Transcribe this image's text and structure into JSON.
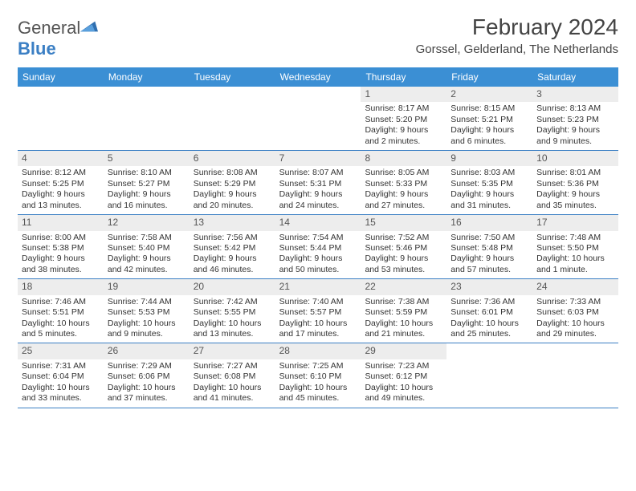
{
  "logo": {
    "text_general": "General",
    "text_blue": "Blue"
  },
  "title": "February 2024",
  "location": "Gorssel, Gelderland, The Netherlands",
  "colors": {
    "header_bar": "#3b8fd4",
    "rule": "#3b7fc4",
    "daynum_bg": "#ededed",
    "text": "#333333",
    "bg": "#ffffff"
  },
  "typography": {
    "title_fontsize": 28,
    "location_fontsize": 15,
    "dow_fontsize": 12,
    "body_fontsize": 10.5
  },
  "days_of_week": [
    "Sunday",
    "Monday",
    "Tuesday",
    "Wednesday",
    "Thursday",
    "Friday",
    "Saturday"
  ],
  "weeks": [
    [
      {
        "empty": true
      },
      {
        "empty": true
      },
      {
        "empty": true
      },
      {
        "empty": true
      },
      {
        "num": "1",
        "sunrise": "Sunrise: 8:17 AM",
        "sunset": "Sunset: 5:20 PM",
        "daylight": "Daylight: 9 hours and 2 minutes."
      },
      {
        "num": "2",
        "sunrise": "Sunrise: 8:15 AM",
        "sunset": "Sunset: 5:21 PM",
        "daylight": "Daylight: 9 hours and 6 minutes."
      },
      {
        "num": "3",
        "sunrise": "Sunrise: 8:13 AM",
        "sunset": "Sunset: 5:23 PM",
        "daylight": "Daylight: 9 hours and 9 minutes."
      }
    ],
    [
      {
        "num": "4",
        "sunrise": "Sunrise: 8:12 AM",
        "sunset": "Sunset: 5:25 PM",
        "daylight": "Daylight: 9 hours and 13 minutes."
      },
      {
        "num": "5",
        "sunrise": "Sunrise: 8:10 AM",
        "sunset": "Sunset: 5:27 PM",
        "daylight": "Daylight: 9 hours and 16 minutes."
      },
      {
        "num": "6",
        "sunrise": "Sunrise: 8:08 AM",
        "sunset": "Sunset: 5:29 PM",
        "daylight": "Daylight: 9 hours and 20 minutes."
      },
      {
        "num": "7",
        "sunrise": "Sunrise: 8:07 AM",
        "sunset": "Sunset: 5:31 PM",
        "daylight": "Daylight: 9 hours and 24 minutes."
      },
      {
        "num": "8",
        "sunrise": "Sunrise: 8:05 AM",
        "sunset": "Sunset: 5:33 PM",
        "daylight": "Daylight: 9 hours and 27 minutes."
      },
      {
        "num": "9",
        "sunrise": "Sunrise: 8:03 AM",
        "sunset": "Sunset: 5:35 PM",
        "daylight": "Daylight: 9 hours and 31 minutes."
      },
      {
        "num": "10",
        "sunrise": "Sunrise: 8:01 AM",
        "sunset": "Sunset: 5:36 PM",
        "daylight": "Daylight: 9 hours and 35 minutes."
      }
    ],
    [
      {
        "num": "11",
        "sunrise": "Sunrise: 8:00 AM",
        "sunset": "Sunset: 5:38 PM",
        "daylight": "Daylight: 9 hours and 38 minutes."
      },
      {
        "num": "12",
        "sunrise": "Sunrise: 7:58 AM",
        "sunset": "Sunset: 5:40 PM",
        "daylight": "Daylight: 9 hours and 42 minutes."
      },
      {
        "num": "13",
        "sunrise": "Sunrise: 7:56 AM",
        "sunset": "Sunset: 5:42 PM",
        "daylight": "Daylight: 9 hours and 46 minutes."
      },
      {
        "num": "14",
        "sunrise": "Sunrise: 7:54 AM",
        "sunset": "Sunset: 5:44 PM",
        "daylight": "Daylight: 9 hours and 50 minutes."
      },
      {
        "num": "15",
        "sunrise": "Sunrise: 7:52 AM",
        "sunset": "Sunset: 5:46 PM",
        "daylight": "Daylight: 9 hours and 53 minutes."
      },
      {
        "num": "16",
        "sunrise": "Sunrise: 7:50 AM",
        "sunset": "Sunset: 5:48 PM",
        "daylight": "Daylight: 9 hours and 57 minutes."
      },
      {
        "num": "17",
        "sunrise": "Sunrise: 7:48 AM",
        "sunset": "Sunset: 5:50 PM",
        "daylight": "Daylight: 10 hours and 1 minute."
      }
    ],
    [
      {
        "num": "18",
        "sunrise": "Sunrise: 7:46 AM",
        "sunset": "Sunset: 5:51 PM",
        "daylight": "Daylight: 10 hours and 5 minutes."
      },
      {
        "num": "19",
        "sunrise": "Sunrise: 7:44 AM",
        "sunset": "Sunset: 5:53 PM",
        "daylight": "Daylight: 10 hours and 9 minutes."
      },
      {
        "num": "20",
        "sunrise": "Sunrise: 7:42 AM",
        "sunset": "Sunset: 5:55 PM",
        "daylight": "Daylight: 10 hours and 13 minutes."
      },
      {
        "num": "21",
        "sunrise": "Sunrise: 7:40 AM",
        "sunset": "Sunset: 5:57 PM",
        "daylight": "Daylight: 10 hours and 17 minutes."
      },
      {
        "num": "22",
        "sunrise": "Sunrise: 7:38 AM",
        "sunset": "Sunset: 5:59 PM",
        "daylight": "Daylight: 10 hours and 21 minutes."
      },
      {
        "num": "23",
        "sunrise": "Sunrise: 7:36 AM",
        "sunset": "Sunset: 6:01 PM",
        "daylight": "Daylight: 10 hours and 25 minutes."
      },
      {
        "num": "24",
        "sunrise": "Sunrise: 7:33 AM",
        "sunset": "Sunset: 6:03 PM",
        "daylight": "Daylight: 10 hours and 29 minutes."
      }
    ],
    [
      {
        "num": "25",
        "sunrise": "Sunrise: 7:31 AM",
        "sunset": "Sunset: 6:04 PM",
        "daylight": "Daylight: 10 hours and 33 minutes."
      },
      {
        "num": "26",
        "sunrise": "Sunrise: 7:29 AM",
        "sunset": "Sunset: 6:06 PM",
        "daylight": "Daylight: 10 hours and 37 minutes."
      },
      {
        "num": "27",
        "sunrise": "Sunrise: 7:27 AM",
        "sunset": "Sunset: 6:08 PM",
        "daylight": "Daylight: 10 hours and 41 minutes."
      },
      {
        "num": "28",
        "sunrise": "Sunrise: 7:25 AM",
        "sunset": "Sunset: 6:10 PM",
        "daylight": "Daylight: 10 hours and 45 minutes."
      },
      {
        "num": "29",
        "sunrise": "Sunrise: 7:23 AM",
        "sunset": "Sunset: 6:12 PM",
        "daylight": "Daylight: 10 hours and 49 minutes."
      },
      {
        "empty": true
      },
      {
        "empty": true
      }
    ]
  ]
}
